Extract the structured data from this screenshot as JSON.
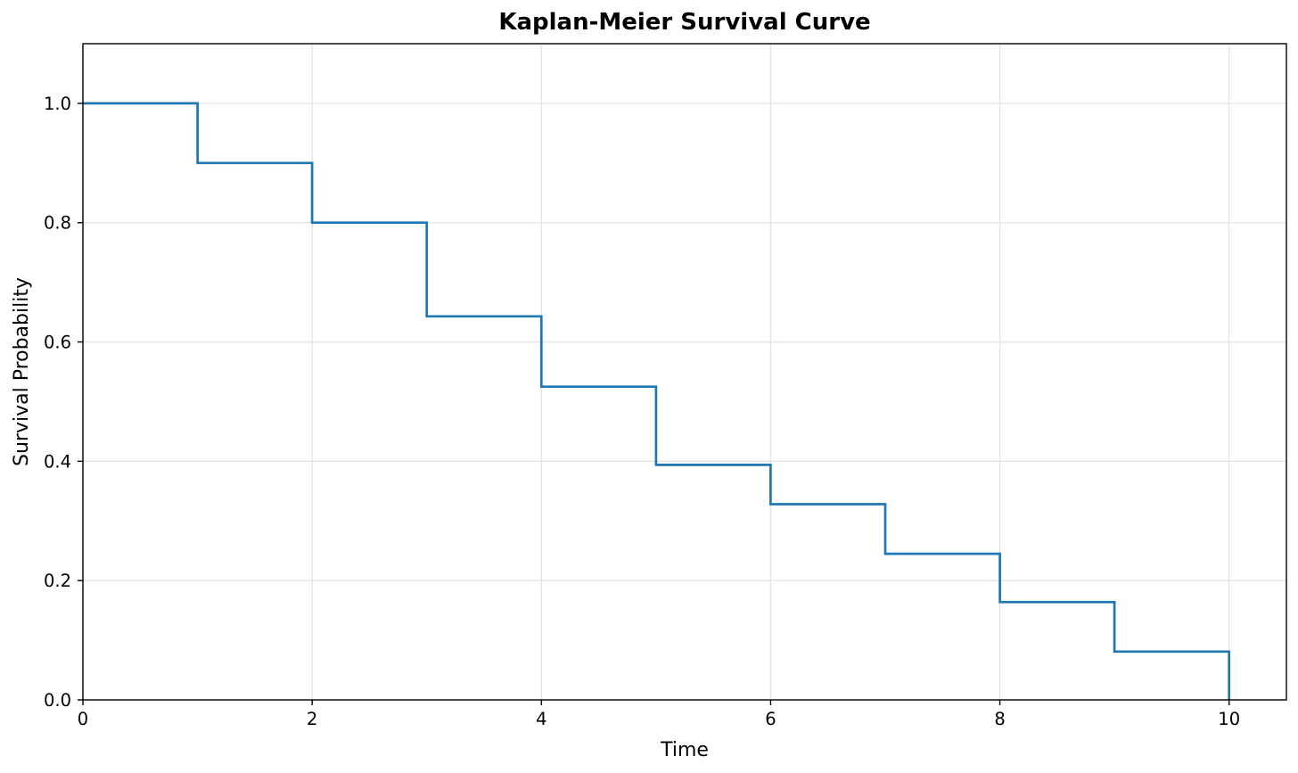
{
  "chart_data": {
    "type": "line",
    "subtype": "step-post",
    "title": "Kaplan-Meier Survival Curve",
    "xlabel": "Time",
    "ylabel": "Survival Probability",
    "x": [
      0,
      1,
      2,
      3,
      4,
      5,
      6,
      7,
      8,
      9,
      10
    ],
    "y": [
      1.0,
      0.9,
      0.8,
      0.643,
      0.525,
      0.394,
      0.328,
      0.245,
      0.164,
      0.081,
      0.0
    ],
    "xlim": [
      0,
      10.5
    ],
    "ylim": [
      0,
      1.1
    ],
    "xticks": [
      0,
      2,
      4,
      6,
      8,
      10
    ],
    "xtick_labels": [
      "0",
      "2",
      "4",
      "6",
      "8",
      "10"
    ],
    "yticks": [
      0.0,
      0.2,
      0.4,
      0.6,
      0.8,
      1.0
    ],
    "ytick_labels": [
      "0.0",
      "0.2",
      "0.4",
      "0.6",
      "0.8",
      "1.0"
    ],
    "grid": true,
    "legend_position": "none",
    "line_color": "#1f77b4",
    "grid_color": "#e4e4e4",
    "spine_color": "#000000",
    "tick_color": "#000000",
    "text_color": "#000000"
  }
}
